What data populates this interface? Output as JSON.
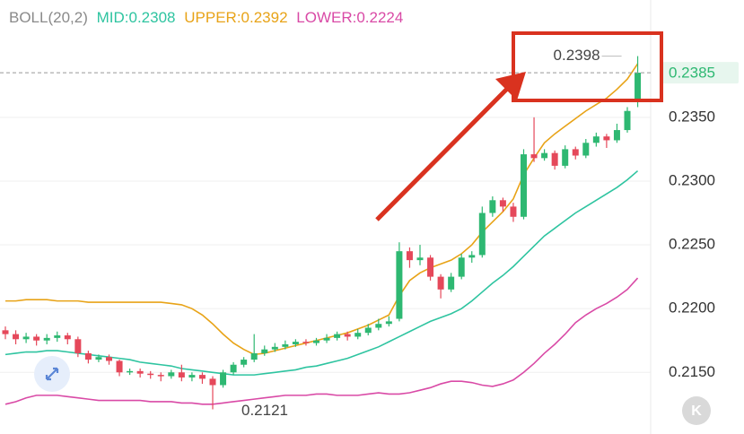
{
  "chart_data": {
    "type": "candlestick",
    "indicator_title": "BOLL(20,2)",
    "indicators": [
      {
        "label": "MID:0.2308",
        "color": "#2ec4a0",
        "values": [
          0.2164,
          0.2165,
          0.2166,
          0.2166,
          0.2167,
          0.2167,
          0.2166,
          0.2165,
          0.2164,
          0.2163,
          0.2162,
          0.2161,
          0.216,
          0.2158,
          0.2157,
          0.2156,
          0.2155,
          0.2153,
          0.2152,
          0.2151,
          0.215,
          0.2149,
          0.2148,
          0.2148,
          0.2148,
          0.2149,
          0.215,
          0.2151,
          0.2152,
          0.2154,
          0.2155,
          0.2157,
          0.2159,
          0.2161,
          0.2164,
          0.2167,
          0.217,
          0.2174,
          0.2178,
          0.2182,
          0.2186,
          0.219,
          0.2193,
          0.2196,
          0.22,
          0.2206,
          0.2213,
          0.222,
          0.2226,
          0.2233,
          0.2241,
          0.2249,
          0.2257,
          0.2263,
          0.2269,
          0.2275,
          0.228,
          0.2285,
          0.229,
          0.2295,
          0.2301,
          0.2308
        ]
      },
      {
        "label": "UPPER:0.2392",
        "color": "#e8a317",
        "values": [
          0.2206,
          0.2206,
          0.2207,
          0.2207,
          0.2207,
          0.2206,
          0.2206,
          0.2206,
          0.2205,
          0.2205,
          0.2205,
          0.2205,
          0.2205,
          0.2205,
          0.2205,
          0.2205,
          0.2204,
          0.2203,
          0.22,
          0.2195,
          0.2188,
          0.218,
          0.2173,
          0.2168,
          0.2164,
          0.2165,
          0.2167,
          0.2169,
          0.2171,
          0.2173,
          0.2175,
          0.2177,
          0.2179,
          0.2181,
          0.2184,
          0.2187,
          0.2191,
          0.2195,
          0.221,
          0.2222,
          0.2228,
          0.2232,
          0.2235,
          0.2238,
          0.2243,
          0.225,
          0.226,
          0.2268,
          0.2276,
          0.2286,
          0.2305,
          0.2318,
          0.233,
          0.2337,
          0.2343,
          0.2349,
          0.2355,
          0.236,
          0.2365,
          0.2372,
          0.238,
          0.2392
        ]
      },
      {
        "label": "LOWER:0.2224",
        "color": "#d94aa6",
        "values": [
          0.2125,
          0.2127,
          0.213,
          0.2132,
          0.2132,
          0.2132,
          0.2131,
          0.213,
          0.2129,
          0.2128,
          0.2128,
          0.2128,
          0.2128,
          0.2128,
          0.2127,
          0.2127,
          0.2127,
          0.2126,
          0.2126,
          0.2125,
          0.2125,
          0.2126,
          0.2127,
          0.2128,
          0.2129,
          0.213,
          0.2131,
          0.2132,
          0.2132,
          0.2132,
          0.2133,
          0.2133,
          0.2132,
          0.2132,
          0.2132,
          0.2133,
          0.2134,
          0.2133,
          0.2133,
          0.2134,
          0.2136,
          0.2138,
          0.2141,
          0.2143,
          0.2143,
          0.2142,
          0.214,
          0.2139,
          0.2141,
          0.2144,
          0.215,
          0.2157,
          0.2165,
          0.2172,
          0.218,
          0.2189,
          0.2195,
          0.22,
          0.2204,
          0.2209,
          0.2215,
          0.2224
        ]
      }
    ],
    "open": [
      0.2183,
      0.218,
      0.2176,
      0.2178,
      0.2175,
      0.2177,
      0.2179,
      0.2176,
      0.2165,
      0.216,
      0.2162,
      0.2159,
      0.215,
      0.2151,
      0.2149,
      0.2148,
      0.2147,
      0.215,
      0.2146,
      0.2148,
      0.2145,
      0.214,
      0.215,
      0.2156,
      0.216,
      0.2165,
      0.2168,
      0.217,
      0.2172,
      0.2174,
      0.2173,
      0.2175,
      0.2177,
      0.218,
      0.2178,
      0.2181,
      0.2185,
      0.2188,
      0.2192,
      0.2245,
      0.2238,
      0.224,
      0.2225,
      0.2215,
      0.2225,
      0.224,
      0.2242,
      0.2275,
      0.2285,
      0.228,
      0.2272,
      0.2321,
      0.2318,
      0.2322,
      0.2312,
      0.2325,
      0.232,
      0.233,
      0.2335,
      0.2332,
      0.234,
      0.2362
    ],
    "high": [
      0.2186,
      0.2183,
      0.2181,
      0.218,
      0.218,
      0.2182,
      0.2181,
      0.2178,
      0.2167,
      0.2164,
      0.2164,
      0.216,
      0.2153,
      0.2153,
      0.2151,
      0.215,
      0.2152,
      0.2156,
      0.215,
      0.215,
      0.2147,
      0.2152,
      0.2158,
      0.2162,
      0.218,
      0.2171,
      0.2173,
      0.2175,
      0.2176,
      0.2176,
      0.2177,
      0.218,
      0.2182,
      0.2182,
      0.2184,
      0.2188,
      0.2192,
      0.2194,
      0.2252,
      0.2248,
      0.225,
      0.2242,
      0.2227,
      0.2228,
      0.2243,
      0.2245,
      0.228,
      0.2288,
      0.2287,
      0.2283,
      0.2325,
      0.235,
      0.2325,
      0.2324,
      0.2328,
      0.2327,
      0.2333,
      0.2338,
      0.2337,
      0.2345,
      0.2358,
      0.2398
    ],
    "low": [
      0.2176,
      0.2172,
      0.2173,
      0.2171,
      0.2172,
      0.2174,
      0.2172,
      0.2162,
      0.2157,
      0.2158,
      0.2156,
      0.2147,
      0.2148,
      0.2146,
      0.2145,
      0.2143,
      0.2145,
      0.2143,
      0.2143,
      0.2141,
      0.2121,
      0.2138,
      0.2148,
      0.2154,
      0.2158,
      0.2163,
      0.2166,
      0.2168,
      0.217,
      0.2171,
      0.2171,
      0.2173,
      0.2175,
      0.2175,
      0.2176,
      0.2179,
      0.2183,
      0.2186,
      0.219,
      0.2232,
      0.2234,
      0.2222,
      0.2208,
      0.2213,
      0.2223,
      0.2236,
      0.224,
      0.2272,
      0.2276,
      0.2268,
      0.227,
      0.2315,
      0.2316,
      0.2309,
      0.231,
      0.2317,
      0.2318,
      0.2327,
      0.2326,
      0.233,
      0.2338,
      0.2358
    ],
    "close": [
      0.218,
      0.2176,
      0.2178,
      0.2175,
      0.2177,
      0.2179,
      0.2176,
      0.2165,
      0.216,
      0.2162,
      0.2159,
      0.215,
      0.2151,
      0.2149,
      0.2148,
      0.2147,
      0.215,
      0.2146,
      0.2148,
      0.2145,
      0.214,
      0.215,
      0.2156,
      0.216,
      0.2165,
      0.2168,
      0.217,
      0.2172,
      0.2174,
      0.2173,
      0.2175,
      0.2177,
      0.218,
      0.2178,
      0.2181,
      0.2185,
      0.2188,
      0.219,
      0.2245,
      0.2238,
      0.224,
      0.2225,
      0.2215,
      0.2225,
      0.224,
      0.2242,
      0.2275,
      0.2285,
      0.228,
      0.2272,
      0.2321,
      0.2318,
      0.2322,
      0.2312,
      0.2325,
      0.232,
      0.233,
      0.2335,
      0.2332,
      0.234,
      0.2355,
      0.2385
    ],
    "up_color": "#2eb872",
    "down_color": "#e5485a",
    "last_price": 0.2385,
    "max_label": 0.2398,
    "min_label": 0.2121,
    "ylim": [
      0.2108,
      0.2442
    ],
    "yticks": [
      {
        "value": 0.215,
        "label": "0.2150"
      },
      {
        "value": 0.22,
        "label": "0.2200"
      },
      {
        "value": 0.225,
        "label": "0.2250"
      },
      {
        "value": 0.23,
        "label": "0.2300"
      },
      {
        "value": 0.235,
        "label": "0.2350"
      }
    ],
    "grid": true,
    "k_button": "K"
  }
}
